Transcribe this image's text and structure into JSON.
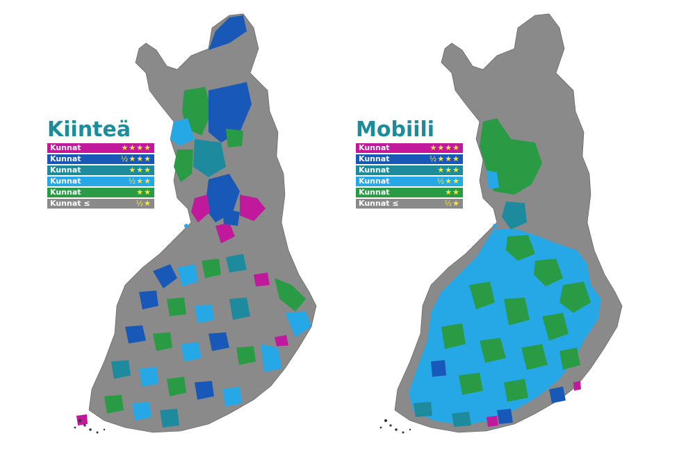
{
  "maps": [
    {
      "id": "left",
      "title": "Kiinteä",
      "title_color": "#1a8c9a",
      "legend": [
        {
          "label": "Kunnat",
          "stars": "★★★★",
          "color": "#c0199b"
        },
        {
          "label": "Kunnat",
          "stars": "½★★★",
          "color": "#1859b8"
        },
        {
          "label": "Kunnat",
          "stars": "★★★",
          "color": "#1e8a9e"
        },
        {
          "label": "Kunnat",
          "stars": "½★★",
          "color": "#27a8e6"
        },
        {
          "label": "Kunnat",
          "stars": "★★",
          "color": "#2a9b45"
        },
        {
          "label": "Kunnat ≤",
          "stars": "½★",
          "color": "#8a8a8a"
        }
      ],
      "regions": {
        "lapland_upper": "#8a8a8a",
        "lapland_lower": "#8a8a8a",
        "oulu": "#8a8a8a",
        "central": "#8a8a8a",
        "east": "#8a8a8a",
        "south": "#8a8a8a",
        "west_coast": "#8a8a8a"
      }
    },
    {
      "id": "right",
      "title": "Mobiili",
      "title_color": "#1a8c9a",
      "legend": [
        {
          "label": "Kunnat",
          "stars": "★★★★",
          "color": "#c0199b"
        },
        {
          "label": "Kunnat",
          "stars": "½★★★",
          "color": "#1859b8"
        },
        {
          "label": "Kunnat",
          "stars": "★★★",
          "color": "#1e8a9e"
        },
        {
          "label": "Kunnat",
          "stars": "½★★",
          "color": "#27a8e6"
        },
        {
          "label": "Kunnat",
          "stars": "★★",
          "color": "#2a9b45"
        },
        {
          "label": "Kunnat ≤",
          "stars": "½★",
          "color": "#8a8a8a"
        }
      ],
      "regions": {
        "lapland_upper": "#8a8a8a",
        "lapland_lower": "#8a8a8a",
        "oulu": "#2a9b45",
        "central": "#27a8e6",
        "east": "#2a9b45",
        "south": "#27a8e6",
        "west_coast": "#27a8e6"
      }
    }
  ]
}
